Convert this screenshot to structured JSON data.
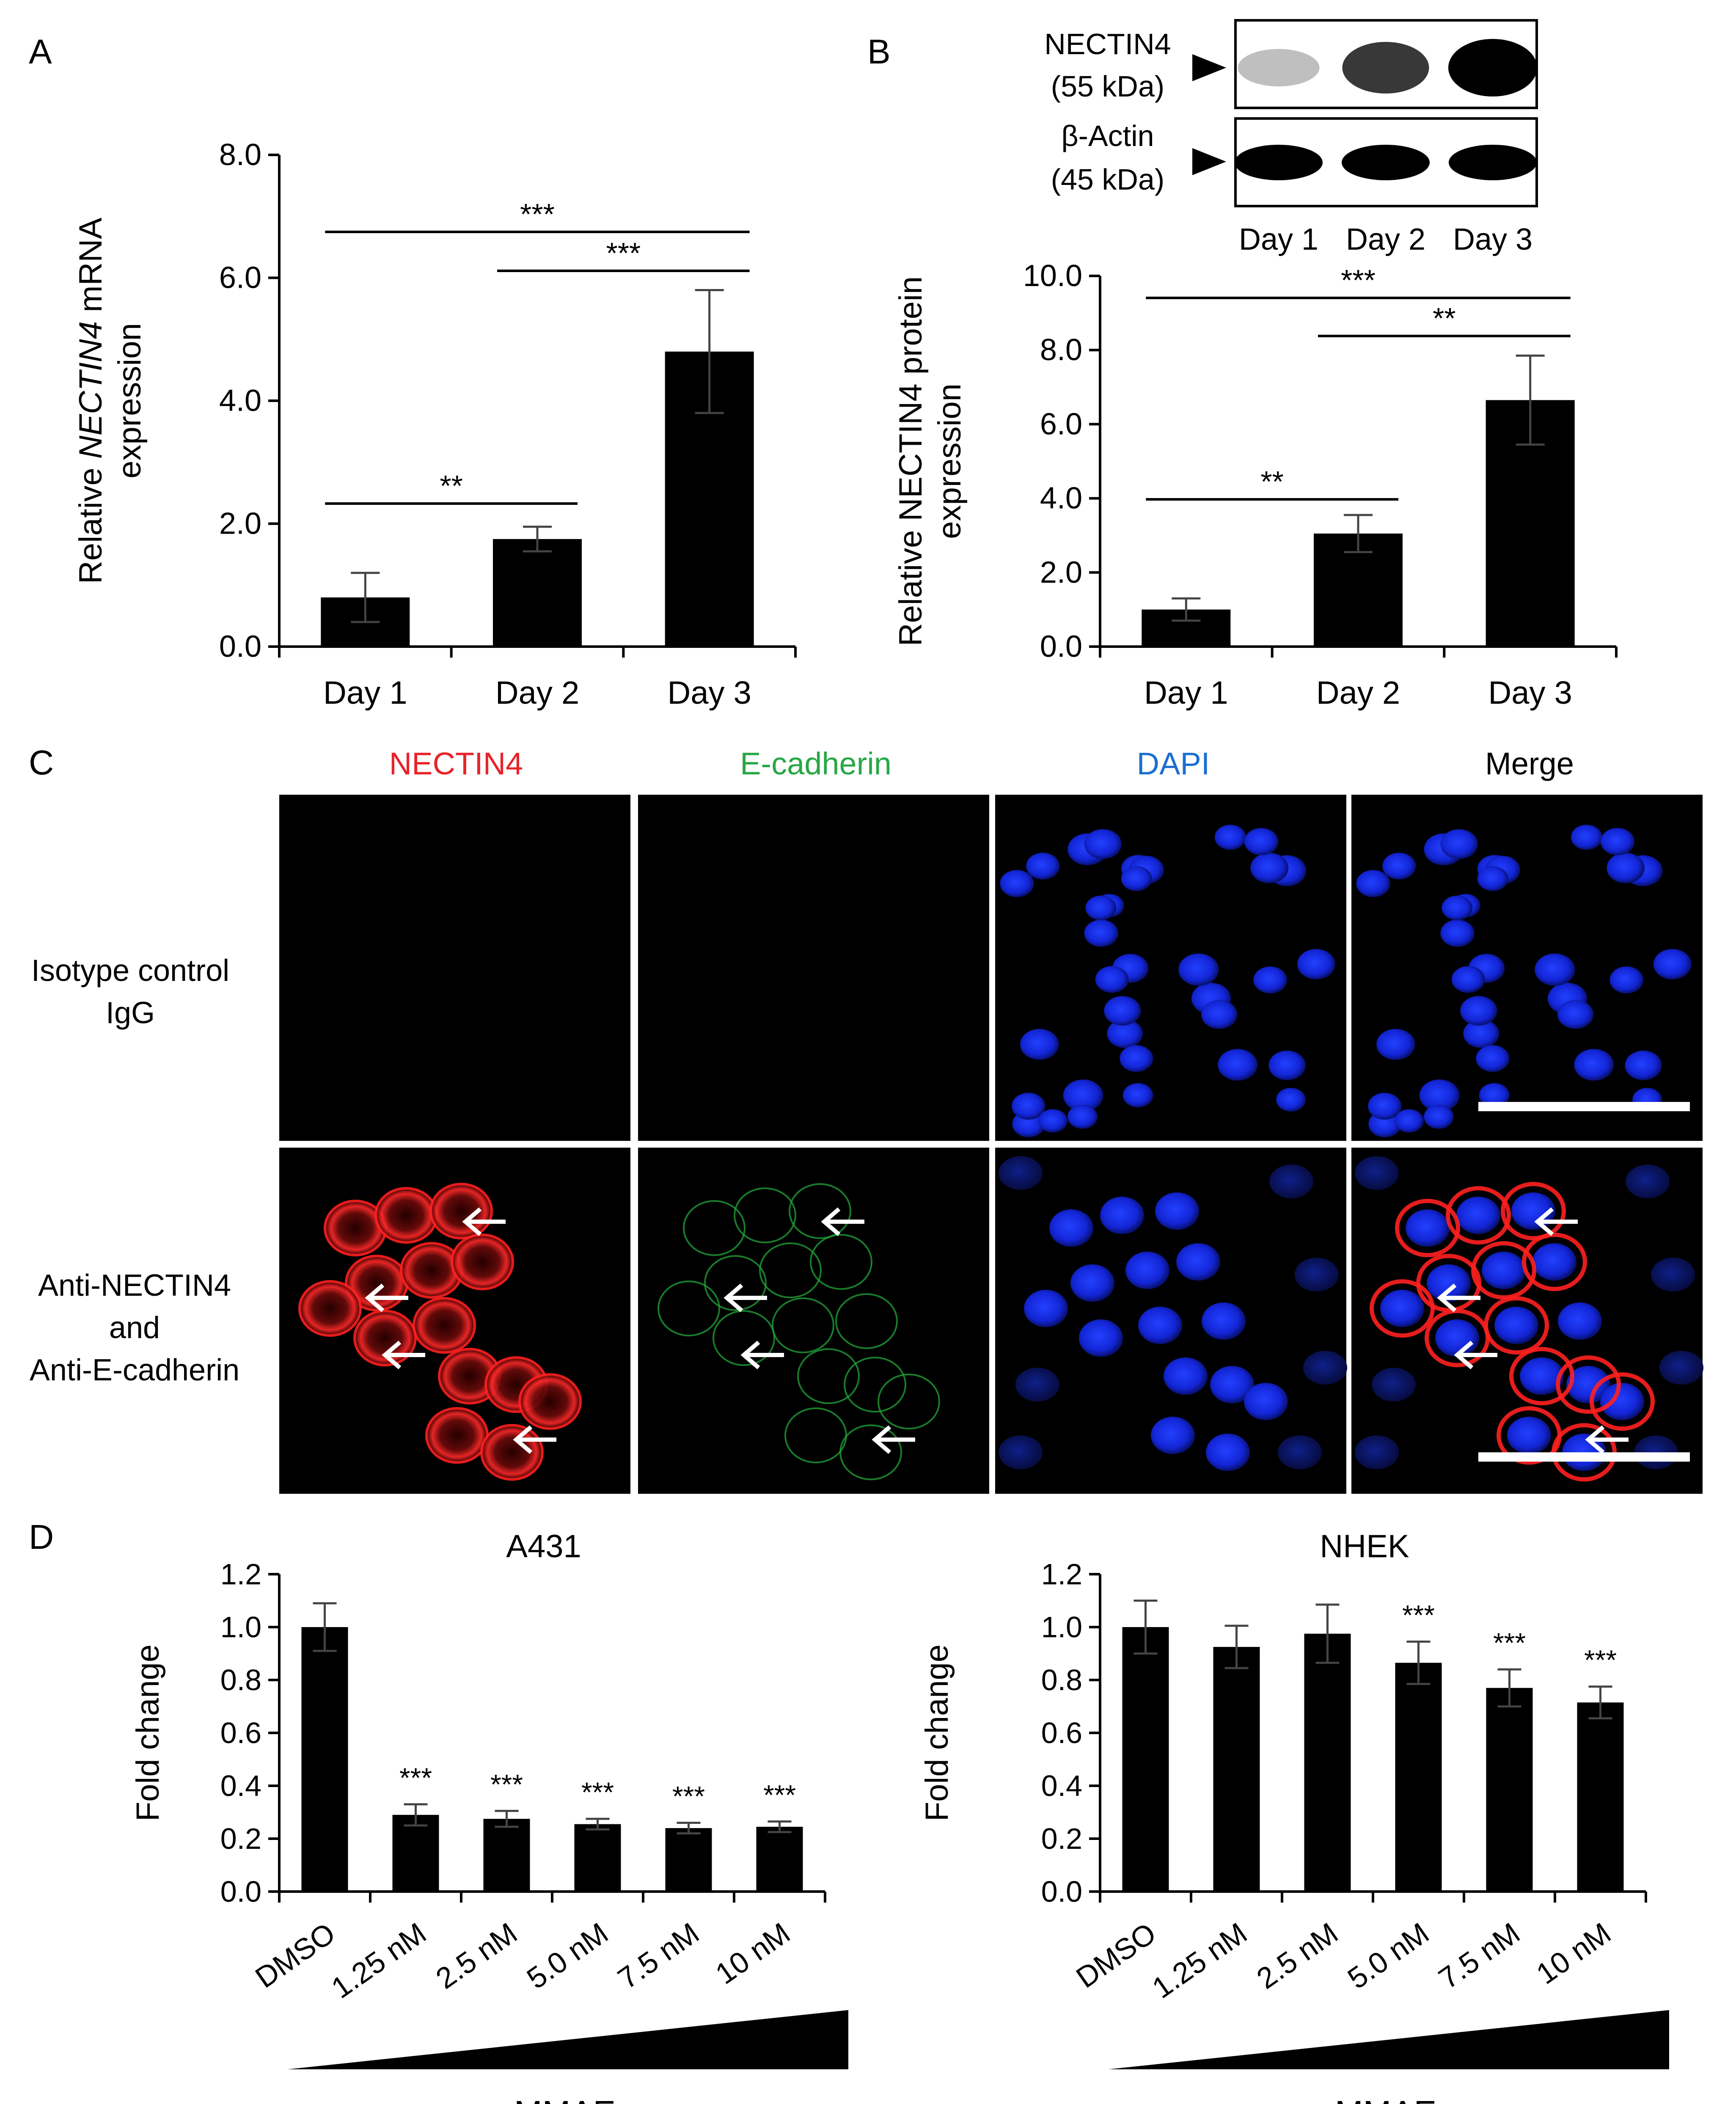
{
  "panels": {
    "a": "A",
    "b": "B",
    "c": "C",
    "d": "D"
  },
  "western_blot": {
    "labels": [
      {
        "line1": "NECTIN4",
        "line2": "(55 kDa)"
      },
      {
        "line1": "β-Actin",
        "line2": "(45 kDa)"
      }
    ],
    "lanes": [
      "Day 1",
      "Day 2",
      "Day 3"
    ],
    "nectin4_intensity": [
      0.15,
      0.75,
      1.0
    ],
    "actin_intensity": [
      1.0,
      1.0,
      1.0
    ]
  },
  "if_panel": {
    "columns": [
      "NECTIN4",
      "E-cadherin",
      "DAPI",
      "Merge"
    ],
    "column_colors": [
      "#e8232a",
      "#28a745",
      "#1a6fd1",
      "#000000"
    ],
    "rows": [
      {
        "line1": "Isotype control",
        "line2": "IgG",
        "line3": ""
      },
      {
        "line1": "Anti-NECTIN4",
        "line2": "and",
        "line3": "Anti-E-cadherin"
      }
    ]
  },
  "chart_data": [
    {
      "id": "A",
      "type": "bar",
      "categories": [
        "Day 1",
        "Day 2",
        "Day 3"
      ],
      "values": [
        0.8,
        1.75,
        4.8
      ],
      "errors": [
        0.4,
        0.2,
        1.0
      ],
      "ylabel_prefix": "Relative ",
      "ylabel_italic": "NECTIN4",
      "ylabel_suffix": " mRNA",
      "ylabel_line2": "expression",
      "ylim": [
        0,
        8
      ],
      "yticks": [
        "0.0",
        "2.0",
        "4.0",
        "6.0",
        "8.0"
      ],
      "significance": [
        {
          "from": 0,
          "to": 2,
          "label": "***"
        },
        {
          "from": 1,
          "to": 2,
          "label": "***"
        },
        {
          "from": 0,
          "to": 1,
          "label": "**"
        }
      ]
    },
    {
      "id": "B",
      "type": "bar",
      "categories": [
        "Day 1",
        "Day 2",
        "Day 3"
      ],
      "values": [
        1.0,
        3.05,
        6.65
      ],
      "errors": [
        0.3,
        0.5,
        1.2
      ],
      "ylabel_line1": "Relative NECTIN4 protein",
      "ylabel_line2": "expression",
      "ylim": [
        0,
        10
      ],
      "yticks": [
        "0.0",
        "2.0",
        "4.0",
        "6.0",
        "8.0",
        "10.0"
      ],
      "significance": [
        {
          "from": 0,
          "to": 2,
          "label": "***"
        },
        {
          "from": 1,
          "to": 2,
          "label": "**"
        },
        {
          "from": 0,
          "to": 1,
          "label": "**"
        }
      ]
    },
    {
      "id": "D-A431",
      "type": "bar",
      "title": "A431",
      "categories": [
        "DMSO",
        "1.25 nM",
        "2.5 nM",
        "5.0 nM",
        "7.5 nM",
        "10 nM"
      ],
      "values": [
        1.0,
        0.29,
        0.275,
        0.255,
        0.24,
        0.245
      ],
      "errors": [
        0.09,
        0.04,
        0.03,
        0.02,
        0.02,
        0.02
      ],
      "stars": [
        "",
        "***",
        "***",
        "***",
        "***",
        "***"
      ],
      "ylabel": "Fold change",
      "ylim": [
        0,
        1.2
      ],
      "yticks": [
        "0.0",
        "0.2",
        "0.4",
        "0.6",
        "0.8",
        "1.0",
        "1.2"
      ],
      "treatment_label": "MMAE"
    },
    {
      "id": "D-NHEK",
      "type": "bar",
      "title": "NHEK",
      "categories": [
        "DMSO",
        "1.25 nM",
        "2.5 nM",
        "5.0 nM",
        "7.5 nM",
        "10 nM"
      ],
      "values": [
        1.0,
        0.925,
        0.975,
        0.865,
        0.77,
        0.715
      ],
      "errors": [
        0.1,
        0.08,
        0.11,
        0.08,
        0.07,
        0.06
      ],
      "stars": [
        "",
        "",
        "",
        "***",
        "***",
        "***"
      ],
      "ylabel": "Fold change",
      "ylim": [
        0,
        1.2
      ],
      "yticks": [
        "0.0",
        "0.2",
        "0.4",
        "0.6",
        "0.8",
        "1.0",
        "1.2"
      ],
      "treatment_label": "MMAE"
    }
  ]
}
